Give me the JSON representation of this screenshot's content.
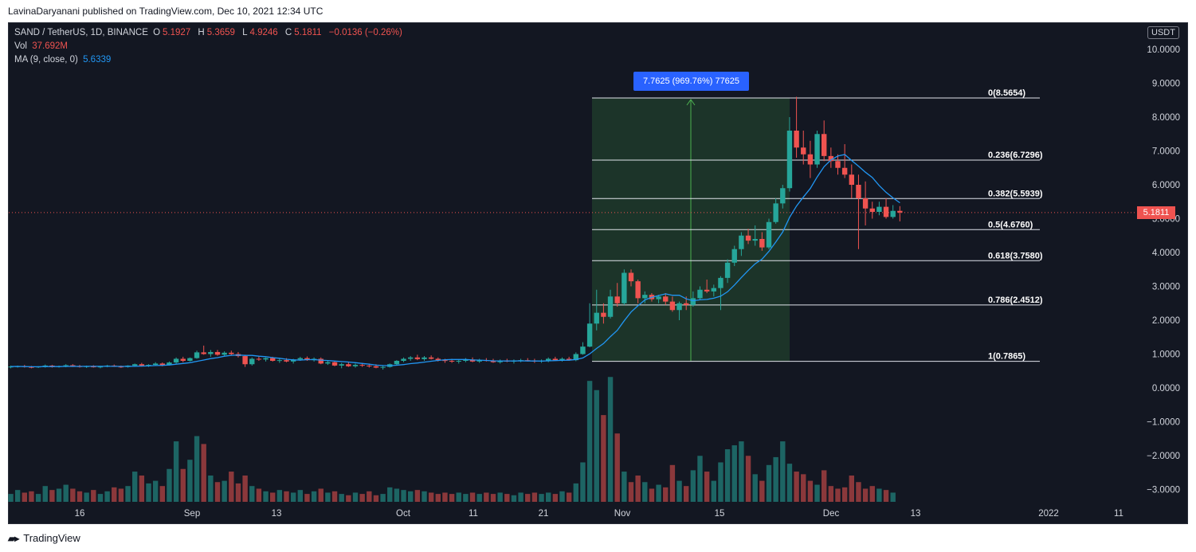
{
  "header": {
    "published_by": "LavinaDaryanani published on TradingView.com, Dec 10, 2021 12:34 UTC"
  },
  "legend": {
    "symbol": "SAND / TetherUS, 1D, BINANCE",
    "o_label": "O",
    "o_value": "5.1927",
    "h_label": "H",
    "h_value": "5.3659",
    "l_label": "L",
    "l_value": "4.9246",
    "c_label": "C",
    "c_value": "5.1811",
    "change": "−0.0136 (−0.26%)",
    "vol_label": "Vol",
    "vol_value": "37.692M",
    "ma_label": "MA (9, close, 0)",
    "ma_value": "5.6339"
  },
  "price_axis": {
    "unit": "USDT",
    "last_price": "5.1811"
  },
  "measure_label": "7.7625 (969.76%) 77625",
  "footer": {
    "brand": "TradingView"
  },
  "colors": {
    "up": "#26a69a",
    "down": "#ef5350",
    "ma": "#2196f3",
    "background": "#131722",
    "fib_zone": "#1e3a2a"
  },
  "chart_data": {
    "type": "candlestick",
    "symbol": "SAND/USDT",
    "timeframe": "1D",
    "x_ticks": [
      "16",
      "Sep",
      "13",
      "Oct",
      "11",
      "21",
      "Nov",
      "15",
      "Dec",
      "13",
      "2022",
      "11"
    ],
    "y_ticks": [
      "10.0000",
      "9.0000",
      "8.0000",
      "7.0000",
      "6.0000",
      "5.0000",
      "4.0000",
      "3.0000",
      "2.0000",
      "1.0000",
      "0.0000",
      "−1.0000",
      "−2.0000",
      "−3.0000"
    ],
    "ylim": [
      -3.3,
      10.6
    ],
    "fib_levels": [
      {
        "label": "0(8.5654)",
        "value": 8.5654
      },
      {
        "label": "0.236(6.7296)",
        "value": 6.7296
      },
      {
        "label": "0.382(5.5939)",
        "value": 5.5939
      },
      {
        "label": "0.5(4.6760)",
        "value": 4.676
      },
      {
        "label": "0.618(3.7580)",
        "value": 3.758
      },
      {
        "label": "0.786(2.4512)",
        "value": 2.4512
      },
      {
        "label": "1(0.7865)",
        "value": 0.7865
      }
    ],
    "candles": [
      [
        0.62,
        0.66,
        0.58,
        0.63
      ],
      [
        0.63,
        0.66,
        0.6,
        0.64
      ],
      [
        0.64,
        0.68,
        0.6,
        0.62
      ],
      [
        0.62,
        0.65,
        0.58,
        0.61
      ],
      [
        0.61,
        0.64,
        0.59,
        0.63
      ],
      [
        0.63,
        0.69,
        0.6,
        0.66
      ],
      [
        0.66,
        0.68,
        0.6,
        0.62
      ],
      [
        0.62,
        0.66,
        0.6,
        0.64
      ],
      [
        0.64,
        0.7,
        0.61,
        0.67
      ],
      [
        0.67,
        0.7,
        0.62,
        0.64
      ],
      [
        0.64,
        0.68,
        0.6,
        0.62
      ],
      [
        0.62,
        0.66,
        0.59,
        0.64
      ],
      [
        0.64,
        0.67,
        0.6,
        0.61
      ],
      [
        0.61,
        0.65,
        0.58,
        0.63
      ],
      [
        0.63,
        0.68,
        0.61,
        0.66
      ],
      [
        0.66,
        0.69,
        0.62,
        0.63
      ],
      [
        0.63,
        0.66,
        0.59,
        0.62
      ],
      [
        0.62,
        0.67,
        0.6,
        0.66
      ],
      [
        0.66,
        0.72,
        0.63,
        0.7
      ],
      [
        0.7,
        0.74,
        0.63,
        0.66
      ],
      [
        0.66,
        0.7,
        0.62,
        0.68
      ],
      [
        0.68,
        0.76,
        0.66,
        0.72
      ],
      [
        0.72,
        0.75,
        0.64,
        0.67
      ],
      [
        0.67,
        0.78,
        0.66,
        0.75
      ],
      [
        0.75,
        0.9,
        0.72,
        0.86
      ],
      [
        0.86,
        0.92,
        0.76,
        0.8
      ],
      [
        0.8,
        0.9,
        0.78,
        0.88
      ],
      [
        0.88,
        1.1,
        0.86,
        1.05
      ],
      [
        1.05,
        1.25,
        0.98,
        1.0
      ],
      [
        1.0,
        1.12,
        0.92,
        1.06
      ],
      [
        1.06,
        1.12,
        0.95,
        0.98
      ],
      [
        0.98,
        1.08,
        0.94,
        1.04
      ],
      [
        1.04,
        1.1,
        0.96,
        1.0
      ],
      [
        1.0,
        1.06,
        0.9,
        0.94
      ],
      [
        0.94,
        0.98,
        0.62,
        0.7
      ],
      [
        0.7,
        0.9,
        0.66,
        0.86
      ],
      [
        0.86,
        0.94,
        0.8,
        0.84
      ],
      [
        0.84,
        0.9,
        0.78,
        0.88
      ],
      [
        0.88,
        0.92,
        0.78,
        0.8
      ],
      [
        0.8,
        0.86,
        0.74,
        0.82
      ],
      [
        0.82,
        0.88,
        0.76,
        0.78
      ],
      [
        0.78,
        0.86,
        0.72,
        0.84
      ],
      [
        0.84,
        0.92,
        0.8,
        0.88
      ],
      [
        0.88,
        0.93,
        0.8,
        0.82
      ],
      [
        0.82,
        0.9,
        0.78,
        0.86
      ],
      [
        0.86,
        0.9,
        0.7,
        0.72
      ],
      [
        0.72,
        0.8,
        0.68,
        0.76
      ],
      [
        0.76,
        0.8,
        0.64,
        0.66
      ],
      [
        0.66,
        0.74,
        0.58,
        0.7
      ],
      [
        0.7,
        0.76,
        0.62,
        0.64
      ],
      [
        0.64,
        0.72,
        0.6,
        0.68
      ],
      [
        0.68,
        0.74,
        0.62,
        0.66
      ],
      [
        0.66,
        0.72,
        0.6,
        0.64
      ],
      [
        0.64,
        0.7,
        0.58,
        0.6
      ],
      [
        0.6,
        0.66,
        0.54,
        0.62
      ],
      [
        0.62,
        0.72,
        0.6,
        0.7
      ],
      [
        0.7,
        0.82,
        0.68,
        0.8
      ],
      [
        0.8,
        0.9,
        0.76,
        0.86
      ],
      [
        0.86,
        0.94,
        0.8,
        0.9
      ],
      [
        0.9,
        0.98,
        0.82,
        0.85
      ],
      [
        0.85,
        0.94,
        0.8,
        0.9
      ],
      [
        0.9,
        0.96,
        0.84,
        0.86
      ],
      [
        0.86,
        0.9,
        0.78,
        0.82
      ],
      [
        0.82,
        0.86,
        0.74,
        0.8
      ],
      [
        0.8,
        0.86,
        0.74,
        0.78
      ],
      [
        0.78,
        0.84,
        0.72,
        0.8
      ],
      [
        0.8,
        0.88,
        0.76,
        0.84
      ],
      [
        0.84,
        0.9,
        0.76,
        0.78
      ],
      [
        0.78,
        0.86,
        0.74,
        0.82
      ],
      [
        0.82,
        0.88,
        0.78,
        0.8
      ],
      [
        0.8,
        0.86,
        0.74,
        0.76
      ],
      [
        0.76,
        0.84,
        0.72,
        0.8
      ],
      [
        0.8,
        0.86,
        0.76,
        0.78
      ],
      [
        0.78,
        0.84,
        0.72,
        0.8
      ],
      [
        0.8,
        0.86,
        0.76,
        0.82
      ],
      [
        0.82,
        0.88,
        0.78,
        0.8
      ],
      [
        0.8,
        0.86,
        0.74,
        0.78
      ],
      [
        0.78,
        0.84,
        0.74,
        0.8
      ],
      [
        0.8,
        0.9,
        0.76,
        0.86
      ],
      [
        0.86,
        0.92,
        0.8,
        0.82
      ],
      [
        0.82,
        0.9,
        0.78,
        0.86
      ],
      [
        0.86,
        0.92,
        0.8,
        0.82
      ],
      [
        0.82,
        1.05,
        0.79,
        1.0
      ],
      [
        1.0,
        1.35,
        0.98,
        1.22
      ],
      [
        1.22,
        2.5,
        1.2,
        1.9
      ],
      [
        1.9,
        2.9,
        1.7,
        2.22
      ],
      [
        2.22,
        2.5,
        1.9,
        2.1
      ],
      [
        2.1,
        2.9,
        2.05,
        2.7
      ],
      [
        2.7,
        3.1,
        2.4,
        2.5
      ],
      [
        2.5,
        3.5,
        2.45,
        3.4
      ],
      [
        3.4,
        3.5,
        3.0,
        3.15
      ],
      [
        3.15,
        3.2,
        2.5,
        2.65
      ],
      [
        2.65,
        2.85,
        2.5,
        2.75
      ],
      [
        2.75,
        2.8,
        2.55,
        2.62
      ],
      [
        2.62,
        2.75,
        2.5,
        2.7
      ],
      [
        2.7,
        2.8,
        2.45,
        2.55
      ],
      [
        2.55,
        2.7,
        2.25,
        2.3
      ],
      [
        2.3,
        2.55,
        2.0,
        2.5
      ],
      [
        2.5,
        2.7,
        2.3,
        2.45
      ],
      [
        2.45,
        2.85,
        2.4,
        2.65
      ],
      [
        2.65,
        3.0,
        2.6,
        2.9
      ],
      [
        2.9,
        3.2,
        2.8,
        2.85
      ],
      [
        2.85,
        3.05,
        2.7,
        2.95
      ],
      [
        2.95,
        3.3,
        2.3,
        3.25
      ],
      [
        3.25,
        3.8,
        3.1,
        3.7
      ],
      [
        3.7,
        4.2,
        3.6,
        4.1
      ],
      [
        4.1,
        4.6,
        3.9,
        4.5
      ],
      [
        4.5,
        4.7,
        4.25,
        4.35
      ],
      [
        4.35,
        4.8,
        4.2,
        4.4
      ],
      [
        4.4,
        4.6,
        4.05,
        4.15
      ],
      [
        4.15,
        5.0,
        4.1,
        4.9
      ],
      [
        4.9,
        5.6,
        4.85,
        5.45
      ],
      [
        5.45,
        6.0,
        5.3,
        5.9
      ],
      [
        5.9,
        8.0,
        5.8,
        7.6
      ],
      [
        7.6,
        8.6,
        6.8,
        7.1
      ],
      [
        7.1,
        7.6,
        6.6,
        6.9
      ],
      [
        6.9,
        7.3,
        6.2,
        6.6
      ],
      [
        6.6,
        7.6,
        6.5,
        7.5
      ],
      [
        7.5,
        7.9,
        6.7,
        6.85
      ],
      [
        6.85,
        7.1,
        6.5,
        6.7
      ],
      [
        6.7,
        6.9,
        6.3,
        6.5
      ],
      [
        6.5,
        7.2,
        6.2,
        6.3
      ],
      [
        6.3,
        6.6,
        5.6,
        6.0
      ],
      [
        6.0,
        6.3,
        4.1,
        5.6
      ],
      [
        5.6,
        6.1,
        4.8,
        5.3
      ],
      [
        5.3,
        5.5,
        5.0,
        5.2
      ],
      [
        5.2,
        5.5,
        5.1,
        5.35
      ],
      [
        5.35,
        5.6,
        5.0,
        5.05
      ],
      [
        5.05,
        5.4,
        5.0,
        5.23
      ],
      [
        5.23,
        5.37,
        4.92,
        5.18
      ]
    ],
    "volume": [
      0.6,
      0.9,
      0.7,
      0.8,
      0.6,
      1.2,
      0.9,
      1.0,
      1.3,
      1.0,
      0.8,
      0.7,
      0.9,
      0.6,
      0.8,
      1.1,
      1.0,
      1.2,
      2.3,
      2.0,
      1.4,
      1.6,
      1.2,
      2.5,
      4.6,
      2.5,
      3.2,
      5.0,
      4.4,
      2.0,
      1.5,
      1.6,
      2.3,
      1.4,
      2.0,
      1.2,
      1.0,
      0.8,
      0.7,
      0.9,
      0.8,
      0.7,
      0.9,
      0.6,
      0.8,
      1.0,
      0.7,
      0.8,
      0.6,
      0.5,
      0.7,
      0.6,
      0.8,
      0.5,
      0.6,
      1.1,
      1.0,
      0.9,
      0.8,
      0.9,
      0.8,
      0.7,
      0.6,
      0.7,
      0.6,
      0.7,
      0.6,
      0.7,
      0.6,
      0.7,
      0.6,
      0.7,
      0.6,
      0.5,
      0.7,
      0.6,
      0.7,
      0.6,
      0.7,
      0.6,
      0.8,
      0.7,
      1.4,
      3.0,
      9.2,
      8.5,
      6.6,
      9.5,
      5.2,
      2.3,
      1.5,
      2.0,
      1.5,
      1.0,
      1.3,
      1.1,
      2.8,
      1.6,
      1.2,
      2.4,
      3.5,
      2.3,
      1.6,
      3.0,
      4.0,
      4.3,
      4.6,
      3.5,
      2.1,
      1.6,
      2.8,
      3.4,
      4.6,
      2.9,
      2.3,
      2.1,
      1.6,
      1.3,
      2.4,
      1.2,
      1.0,
      1.1,
      2.0,
      1.5,
      1.0,
      1.2,
      1.0,
      0.9,
      0.7
    ]
  }
}
